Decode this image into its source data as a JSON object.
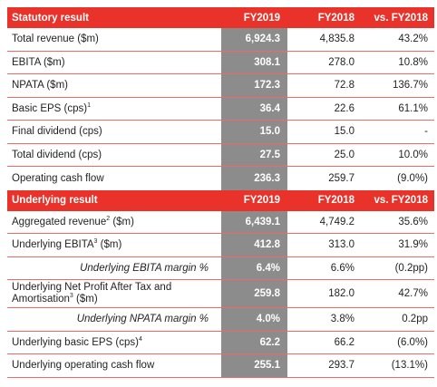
{
  "statutory": {
    "header": {
      "label": "Statutory result",
      "col1": "FY2019",
      "col2": "FY2018",
      "col3": "vs. FY2018"
    },
    "rows": [
      {
        "label": "Total revenue ($m)",
        "fy2019": "6,924.3",
        "fy2018": "4,835.8",
        "vs": "43.2%"
      },
      {
        "label": "EBITA ($m)",
        "fy2019": "308.1",
        "fy2018": "278.0",
        "vs": "10.8%"
      },
      {
        "label": "NPATA ($m)",
        "fy2019": "172.3",
        "fy2018": "72.8",
        "vs": "136.7%"
      },
      {
        "label": "Basic EPS (cps)",
        "sup": "1",
        "fy2019": "36.4",
        "fy2018": "22.6",
        "vs": "61.1%"
      },
      {
        "label": "Final dividend (cps)",
        "fy2019": "15.0",
        "fy2018": "15.0",
        "vs": "-"
      },
      {
        "label": "Total dividend (cps)",
        "fy2019": "27.5",
        "fy2018": "25.0",
        "vs": "10.0%"
      },
      {
        "label": "Operating cash flow",
        "fy2019": "236.3",
        "fy2018": "259.7",
        "vs": "(9.0%)"
      }
    ]
  },
  "underlying": {
    "header": {
      "label": "Underlying result",
      "col1": "FY2019",
      "col2": "FY2018",
      "col3": "vs. FY2018"
    },
    "rows": [
      {
        "label_a": "Aggregated revenue",
        "sup": "2",
        "label_b": " ($m)",
        "fy2019": "6,439.1",
        "fy2018": "4,749.2",
        "vs": "35.6%"
      },
      {
        "label_a": "Underlying EBITA",
        "sup": "3",
        "label_b": " ($m)",
        "fy2019": "412.8",
        "fy2018": "313.0",
        "vs": "31.9%"
      },
      {
        "label": "Underlying EBITA margin %",
        "fy2019": "6.4%",
        "fy2018": "6.6%",
        "vs": "(0.2pp)"
      },
      {
        "line1": "Underlying Net Profit After Tax and",
        "line2_a": "Amortisation",
        "sup": "3",
        "line2_b": " ($m)",
        "fy2019": "259.8",
        "fy2018": "182.0",
        "vs": "42.7%"
      },
      {
        "label": "Underlying NPATA margin %",
        "fy2019": "4.0%",
        "fy2018": "3.8%",
        "vs": "0.2pp"
      },
      {
        "label_a": "Underlying basic EPS (cps)",
        "sup": "4",
        "fy2019": "62.2",
        "fy2018": "66.2",
        "vs": "(6.0%)"
      },
      {
        "label": "Underlying operating cash flow",
        "fy2019": "255.1",
        "fy2018": "293.7",
        "vs": "(13.1%)"
      }
    ]
  }
}
